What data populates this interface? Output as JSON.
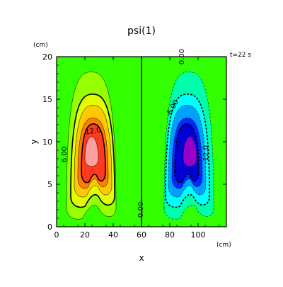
{
  "chart_data": {
    "type": "heatmap",
    "title": "psi(1)",
    "time_label": "t=22 s",
    "xlabel": "x",
    "ylabel": "y",
    "x_unit": "(cm)",
    "y_unit": "(cm)",
    "xlim": [
      0,
      120
    ],
    "ylim": [
      0,
      20
    ],
    "x_ticks": [
      "0",
      "20",
      "40",
      "60",
      "80",
      "100"
    ],
    "y_ticks": [
      "0",
      "5",
      "10",
      "15",
      "20"
    ],
    "x_tick_values": [
      0,
      20,
      40,
      60,
      80,
      100
    ],
    "y_tick_values": [
      0,
      5,
      10,
      15,
      20
    ],
    "contour_labels": [
      {
        "text": "12.0",
        "x": 26,
        "y": 11
      },
      {
        "text": "6.00",
        "x": 7,
        "y": 8.5
      },
      {
        "text": "0.00",
        "x": 61,
        "y": 2
      },
      {
        "text": "-6.00",
        "x": 83,
        "y": 13.8
      },
      {
        "text": "-12.0",
        "x": 107,
        "y": 8.5
      },
      {
        "text": "0.00",
        "x": 90,
        "y": 20
      }
    ],
    "colors": {
      "background": "#32ff00",
      "pos_levels": [
        "#96ff00",
        "#e1ff00",
        "#ffc800",
        "#ff7d00",
        "#ff3a1e",
        "#ffa0a0"
      ],
      "neg_levels": [
        "#00ffaa",
        "#00ffff",
        "#00a0ff",
        "#0028ff",
        "#0000d2",
        "#9600c8"
      ]
    }
  }
}
